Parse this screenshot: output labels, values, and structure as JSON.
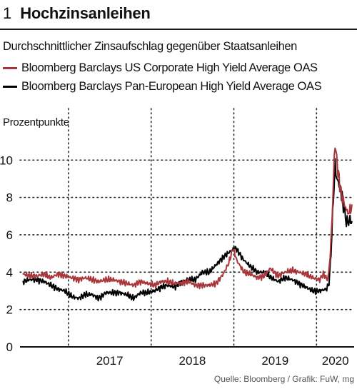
{
  "figure_number": "1",
  "title": "Hochzinsanleihen",
  "subtitle": "Durchschnittlicher Zinsaufschlag gegenüber Staatsanleihen",
  "source": "Quelle: Bloomberg / Grafik: FuW, mg",
  "chart_data": {
    "type": "line",
    "ylabel": "Prozentpunkte",
    "xlabel": "",
    "ylim": [
      0,
      11.5
    ],
    "yticks": [
      0,
      2,
      4,
      6,
      8,
      10
    ],
    "xlim": [
      "2016-06-01",
      "2020-06-15"
    ],
    "xtick_labels": [
      "2017",
      "2018",
      "2019",
      "2020"
    ],
    "year_separators": [
      "2017-01-01",
      "2018-01-01",
      "2019-01-01",
      "2020-01-01"
    ],
    "grid": "horizontal dotted at each y tick; vertical dotted at year boundaries",
    "legend_position": "top",
    "series": [
      {
        "name": "Bloomberg Barclays US Corporate High Yield Average OAS",
        "color": "#a8363a",
        "points": [
          [
            "2016-06-15",
            3.9
          ],
          [
            "2016-07-15",
            3.8
          ],
          [
            "2016-08-15",
            3.8
          ],
          [
            "2016-09-15",
            3.9
          ],
          [
            "2016-10-15",
            3.7
          ],
          [
            "2016-11-15",
            3.9
          ],
          [
            "2016-12-15",
            3.8
          ],
          [
            "2017-01-15",
            3.7
          ],
          [
            "2017-02-15",
            3.6
          ],
          [
            "2017-03-15",
            3.7
          ],
          [
            "2017-04-15",
            3.6
          ],
          [
            "2017-05-15",
            3.5
          ],
          [
            "2017-06-15",
            3.6
          ],
          [
            "2017-07-15",
            3.6
          ],
          [
            "2017-08-15",
            3.5
          ],
          [
            "2017-09-15",
            3.4
          ],
          [
            "2017-10-15",
            3.3
          ],
          [
            "2017-11-15",
            3.5
          ],
          [
            "2017-12-15",
            3.4
          ],
          [
            "2018-01-15",
            3.3
          ],
          [
            "2018-02-15",
            3.5
          ],
          [
            "2018-03-15",
            3.5
          ],
          [
            "2018-04-15",
            3.4
          ],
          [
            "2018-05-15",
            3.4
          ],
          [
            "2018-06-15",
            3.5
          ],
          [
            "2018-07-15",
            3.3
          ],
          [
            "2018-08-15",
            3.3
          ],
          [
            "2018-09-15",
            3.3
          ],
          [
            "2018-10-15",
            3.4
          ],
          [
            "2018-11-15",
            3.9
          ],
          [
            "2018-12-10",
            4.5
          ],
          [
            "2018-12-28",
            5.3
          ],
          [
            "2019-01-15",
            4.6
          ],
          [
            "2019-02-15",
            4.0
          ],
          [
            "2019-03-15",
            3.9
          ],
          [
            "2019-04-15",
            3.7
          ],
          [
            "2019-05-15",
            3.8
          ],
          [
            "2019-06-10",
            4.2
          ],
          [
            "2019-07-15",
            3.8
          ],
          [
            "2019-08-15",
            4.0
          ],
          [
            "2019-09-15",
            4.1
          ],
          [
            "2019-10-15",
            4.0
          ],
          [
            "2019-11-15",
            3.9
          ],
          [
            "2019-12-15",
            3.7
          ],
          [
            "2020-01-15",
            3.6
          ],
          [
            "2020-01-31",
            3.9
          ],
          [
            "2020-02-20",
            3.6
          ],
          [
            "2020-03-01",
            4.8
          ],
          [
            "2020-03-10",
            7.0
          ],
          [
            "2020-03-16",
            9.0
          ],
          [
            "2020-03-23",
            11.0
          ],
          [
            "2020-03-30",
            10.0
          ],
          [
            "2020-04-07",
            9.2
          ],
          [
            "2020-04-15",
            8.5
          ],
          [
            "2020-04-24",
            8.0
          ],
          [
            "2020-05-01",
            7.7
          ],
          [
            "2020-05-08",
            7.5
          ],
          [
            "2020-05-15",
            7.2
          ],
          [
            "2020-05-25",
            7.2
          ],
          [
            "2020-06-05",
            7.6
          ]
        ]
      },
      {
        "name": "Bloomberg Barclays Pan-European High Yield Average OAS",
        "color": "#000000",
        "points": [
          [
            "2016-06-15",
            3.5
          ],
          [
            "2016-07-15",
            3.6
          ],
          [
            "2016-08-15",
            3.6
          ],
          [
            "2016-09-15",
            3.5
          ],
          [
            "2016-10-15",
            3.3
          ],
          [
            "2016-11-15",
            3.1
          ],
          [
            "2016-12-15",
            3.0
          ],
          [
            "2017-01-15",
            2.7
          ],
          [
            "2017-02-15",
            2.6
          ],
          [
            "2017-03-15",
            2.8
          ],
          [
            "2017-04-15",
            2.8
          ],
          [
            "2017-05-15",
            2.6
          ],
          [
            "2017-06-15",
            2.9
          ],
          [
            "2017-07-15",
            2.9
          ],
          [
            "2017-08-15",
            2.9
          ],
          [
            "2017-09-15",
            2.8
          ],
          [
            "2017-10-15",
            2.6
          ],
          [
            "2017-11-15",
            2.9
          ],
          [
            "2017-12-15",
            2.9
          ],
          [
            "2018-01-15",
            3.0
          ],
          [
            "2018-02-15",
            3.2
          ],
          [
            "2018-03-15",
            3.3
          ],
          [
            "2018-04-15",
            3.2
          ],
          [
            "2018-05-15",
            3.5
          ],
          [
            "2018-06-15",
            3.6
          ],
          [
            "2018-07-15",
            3.6
          ],
          [
            "2018-08-15",
            4.0
          ],
          [
            "2018-09-15",
            4.0
          ],
          [
            "2018-10-15",
            4.4
          ],
          [
            "2018-11-15",
            4.8
          ],
          [
            "2018-12-15",
            5.1
          ],
          [
            "2019-01-10",
            5.3
          ],
          [
            "2019-02-10",
            4.7
          ],
          [
            "2019-03-15",
            4.3
          ],
          [
            "2019-04-15",
            4.0
          ],
          [
            "2019-05-15",
            4.0
          ],
          [
            "2019-06-15",
            3.7
          ],
          [
            "2019-07-15",
            3.5
          ],
          [
            "2019-08-15",
            3.7
          ],
          [
            "2019-09-15",
            3.6
          ],
          [
            "2019-10-15",
            3.4
          ],
          [
            "2019-11-15",
            3.2
          ],
          [
            "2019-12-15",
            3.0
          ],
          [
            "2020-01-15",
            3.0
          ],
          [
            "2020-02-15",
            3.1
          ],
          [
            "2020-02-25",
            3.4
          ],
          [
            "2020-03-05",
            5.0
          ],
          [
            "2020-03-12",
            7.0
          ],
          [
            "2020-03-18",
            8.6
          ],
          [
            "2020-03-23",
            9.8
          ],
          [
            "2020-03-30",
            9.0
          ],
          [
            "2020-04-07",
            8.8
          ],
          [
            "2020-04-15",
            8.5
          ],
          [
            "2020-04-23",
            8.0
          ],
          [
            "2020-05-01",
            7.3
          ],
          [
            "2020-05-08",
            7.0
          ],
          [
            "2020-05-15",
            6.6
          ],
          [
            "2020-05-25",
            6.8
          ],
          [
            "2020-06-05",
            6.7
          ]
        ]
      }
    ]
  }
}
